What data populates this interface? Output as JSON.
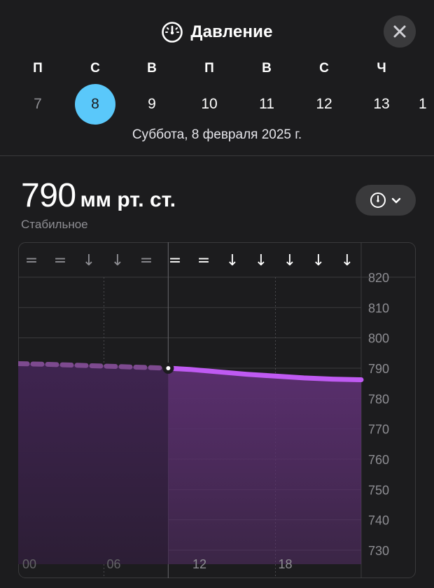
{
  "header": {
    "title": "Давление",
    "title_icon": "gauge-icon",
    "close_icon": "close-icon"
  },
  "week": {
    "letters": [
      "П",
      "С",
      "В",
      "П",
      "В",
      "С",
      "Ч"
    ],
    "dates": [
      "7",
      "8",
      "9",
      "10",
      "11",
      "12",
      "13"
    ],
    "partial_next_date": "1",
    "selected_index": 1,
    "dimmed_index": 0
  },
  "selected_date_text": "Суббота, 8 февраля 2025 г.",
  "reading": {
    "value": "790",
    "unit": "мм рт. ст.",
    "status": "Стабильное"
  },
  "mode_button": {
    "icon": "gauge-icon",
    "chevron": "chevron-down-icon"
  },
  "colors": {
    "background": "#1c1c1e",
    "accent_selected_day": "#5ac8fa",
    "line_forecast": "#bf5af2",
    "line_past": "#7d4a8f",
    "fill": "#5a2f6e"
  },
  "chart_data": {
    "type": "area",
    "trend_arrows": [
      "=",
      "=",
      "↓",
      "↓",
      "=",
      "=",
      "=",
      "↓",
      "↓",
      "↓",
      "↓",
      "↓"
    ],
    "current_index": 5,
    "x_ticks": [
      "00",
      "06",
      "12",
      "18"
    ],
    "y_ticks": [
      "820",
      "810",
      "800",
      "790",
      "780",
      "770",
      "760",
      "750",
      "740",
      "730"
    ],
    "ylim": [
      730,
      820
    ],
    "xlim": [
      0,
      24
    ],
    "current_hour": 10.5,
    "past": {
      "x": [
        0,
        2,
        4,
        6,
        8,
        10.5
      ],
      "y": [
        791.5,
        791.3,
        791,
        790.7,
        790.4,
        790
      ]
    },
    "forecast": {
      "x": [
        10.5,
        12,
        14,
        16,
        18,
        20,
        22,
        24
      ],
      "y": [
        790,
        789.6,
        788.8,
        788,
        787.4,
        786.8,
        786.4,
        786.2
      ]
    }
  }
}
